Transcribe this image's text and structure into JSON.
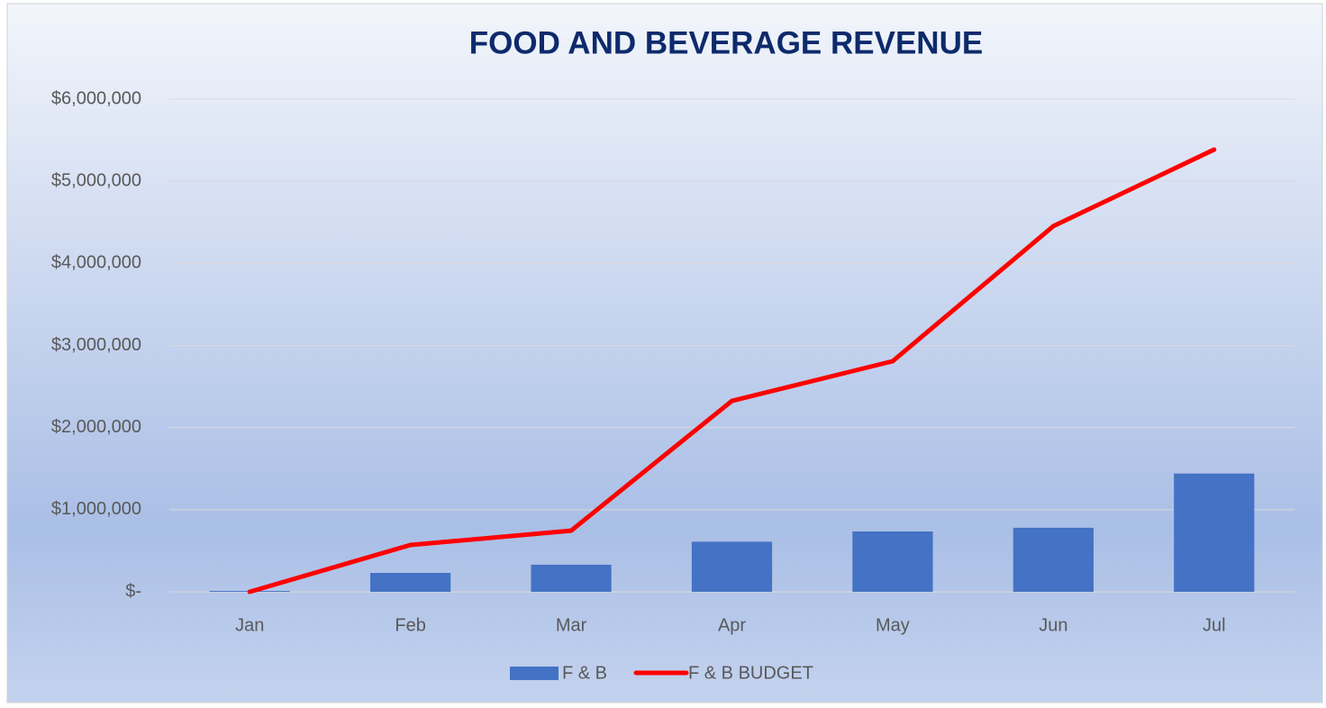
{
  "chart_data": {
    "type": "bar",
    "title": "FOOD AND BEVERAGE REVENUE",
    "categories": [
      "Jan",
      "Feb",
      "Mar",
      "Apr",
      "May",
      "Jun",
      "Jul"
    ],
    "series": [
      {
        "name": "F & B",
        "type": "bar",
        "color": "#4472c4",
        "values": [
          10000,
          230000,
          330000,
          610000,
          735000,
          780000,
          1440000
        ]
      },
      {
        "name": "F & B BUDGET",
        "type": "line",
        "color": "#ff0000",
        "values": [
          0,
          570000,
          745000,
          2325000,
          2808000,
          4453000,
          5385000
        ]
      }
    ],
    "ylim": [
      0,
      6000000
    ],
    "yticks": [
      {
        "value": 0,
        "label": "$-"
      },
      {
        "value": 1000000,
        "label": "$1,000,000"
      },
      {
        "value": 2000000,
        "label": "$2,000,000"
      },
      {
        "value": 3000000,
        "label": "$3,000,000"
      },
      {
        "value": 4000000,
        "label": "$4,000,000"
      },
      {
        "value": 5000000,
        "label": "$5,000,000"
      },
      {
        "value": 6000000,
        "label": "$6,000,000"
      }
    ],
    "grid": true,
    "legend": "bottom"
  }
}
